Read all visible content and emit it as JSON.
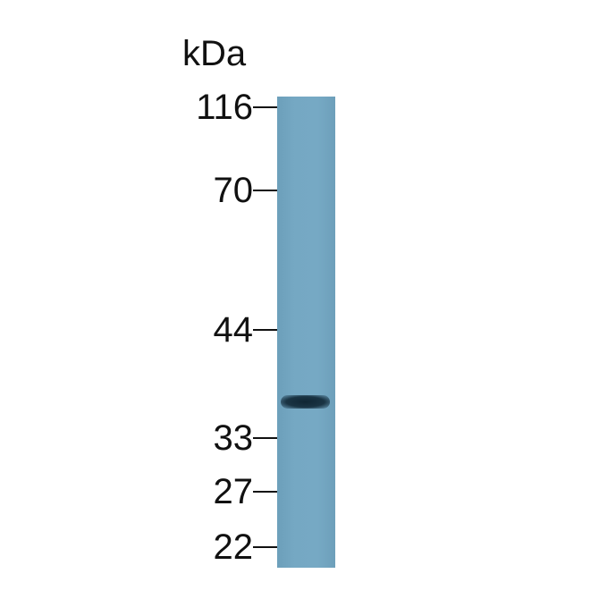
{
  "unit_label": "kDa",
  "markers": [
    {
      "label": "116"
    },
    {
      "label": "70"
    },
    {
      "label": "44"
    },
    {
      "label": "33"
    },
    {
      "label": "27"
    },
    {
      "label": "22"
    }
  ],
  "lane": {
    "color": "#72a6c1"
  },
  "band": {
    "approx_kda": 36,
    "color": "#14303f"
  }
}
